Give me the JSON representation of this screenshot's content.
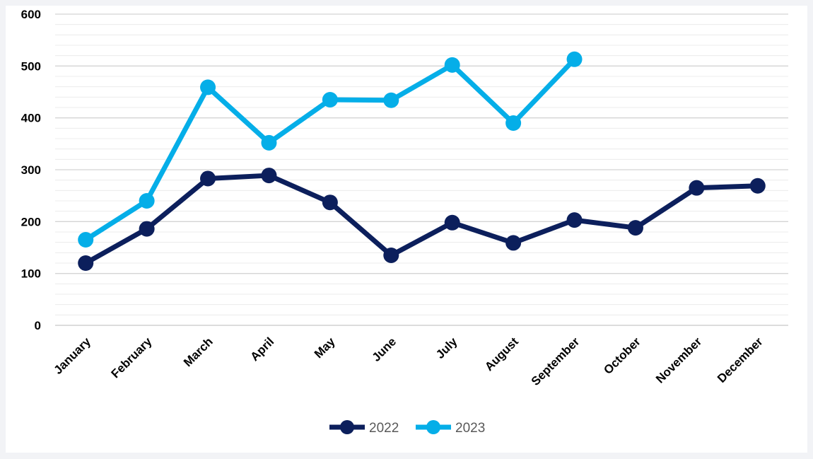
{
  "chart_data": {
    "type": "line",
    "title": "",
    "xlabel": "",
    "ylabel": "",
    "categories": [
      "January",
      "February",
      "March",
      "April",
      "May",
      "June",
      "July",
      "August",
      "September",
      "October",
      "November",
      "December"
    ],
    "y_ticks": [
      "0",
      "100",
      "200",
      "300",
      "400",
      "500",
      "600"
    ],
    "ylim": [
      0,
      600
    ],
    "grid": true,
    "legend_position": "bottom",
    "series": [
      {
        "name": "2022",
        "color": "#0c1f5c",
        "values": [
          120,
          186,
          283,
          289,
          237,
          135,
          198,
          159,
          203,
          188,
          265,
          269
        ]
      },
      {
        "name": "2023",
        "color": "#05aee8",
        "values": [
          165,
          240,
          459,
          352,
          435,
          434,
          502,
          390,
          513,
          null,
          null,
          null
        ]
      }
    ]
  }
}
